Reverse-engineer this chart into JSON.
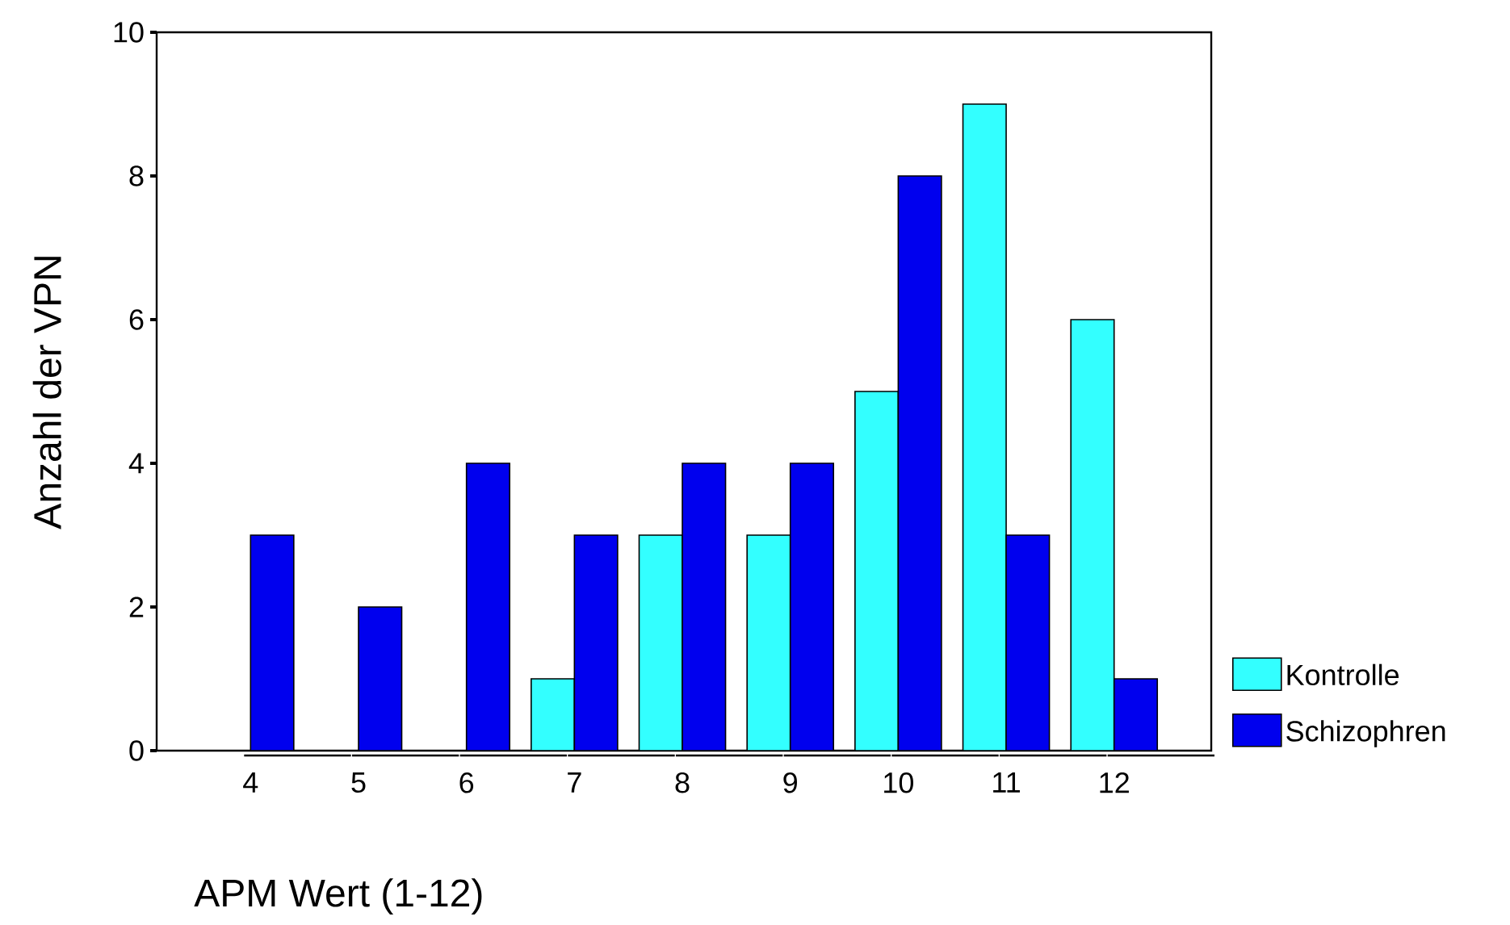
{
  "chart_data": {
    "type": "bar",
    "xlabel": "APM Wert (1-12)",
    "ylabel": "Anzahl der VPN",
    "categories": [
      "4",
      "5",
      "6",
      "7",
      "8",
      "9",
      "10",
      "11",
      "12"
    ],
    "series": [
      {
        "name": "Kontrolle",
        "color": "#33ffff",
        "values": [
          null,
          null,
          null,
          1,
          3,
          3,
          5,
          9,
          6
        ]
      },
      {
        "name": "Schizophren",
        "color": "#0000ee",
        "values": [
          3,
          2,
          4,
          3,
          4,
          4,
          8,
          3,
          1
        ]
      }
    ],
    "ylim": [
      0,
      10
    ],
    "yticks": [
      0,
      2,
      4,
      6,
      8,
      10
    ],
    "grid": false,
    "legend": "right"
  }
}
